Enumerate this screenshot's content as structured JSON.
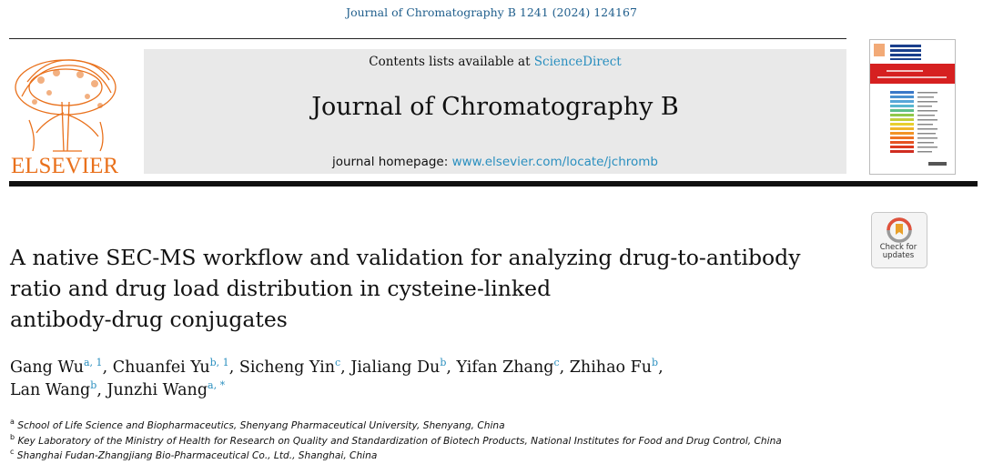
{
  "citation": "Journal of Chromatography B 1241 (2024) 124167",
  "header": {
    "contents_prefix": "Contents lists available at",
    "contents_link": "ScienceDirect",
    "journal_title": "Journal of Chromatography B",
    "homepage_prefix": "journal homepage:",
    "homepage_url": "www.elsevier.com/locate/jchromb",
    "publisher": "ELSEVIER"
  },
  "check_updates": {
    "line1": "Check for",
    "line2": "updates"
  },
  "article": {
    "title_lines": [
      "A native SEC-MS workflow and validation for analyzing drug-to-antibody",
      "ratio and drug load distribution in cysteine-linked",
      "antibody-drug conjugates"
    ]
  },
  "authors": [
    {
      "name": "Gang Wu",
      "sup": "a, 1",
      "sep": ", "
    },
    {
      "name": "Chuanfei Yu",
      "sup": "b, 1",
      "sep": ", "
    },
    {
      "name": "Sicheng Yin",
      "sup": "c",
      "sep": ", "
    },
    {
      "name": "Jialiang Du",
      "sup": "b",
      "sep": ", "
    },
    {
      "name": "Yifan Zhang",
      "sup": "c",
      "sep": ", "
    },
    {
      "name": "Zhihao Fu",
      "sup": "b",
      "sep": ","
    },
    {
      "name": "Lan Wang",
      "sup": "b",
      "sep": ", "
    },
    {
      "name": "Junzhi Wang",
      "sup": "a, *",
      "sep": ""
    }
  ],
  "affiliations": [
    {
      "mark": "a",
      "text": "School of Life Science and Biopharmaceutics, Shenyang Pharmaceutical University, Shenyang, China"
    },
    {
      "mark": "b",
      "text": "Key Laboratory of the Ministry of Health for Research on Quality and Standardization of Biotech Products, National Institutes for Food and Drug Control, China"
    },
    {
      "mark": "c",
      "text": "Shanghai Fudan-Zhangjiang Bio-Pharmaceutical Co., Ltd., Shanghai, China"
    }
  ],
  "colors": {
    "link": "#2a8fbf",
    "publisher_orange": "#e9711c",
    "citation": "#1f5e8c"
  }
}
